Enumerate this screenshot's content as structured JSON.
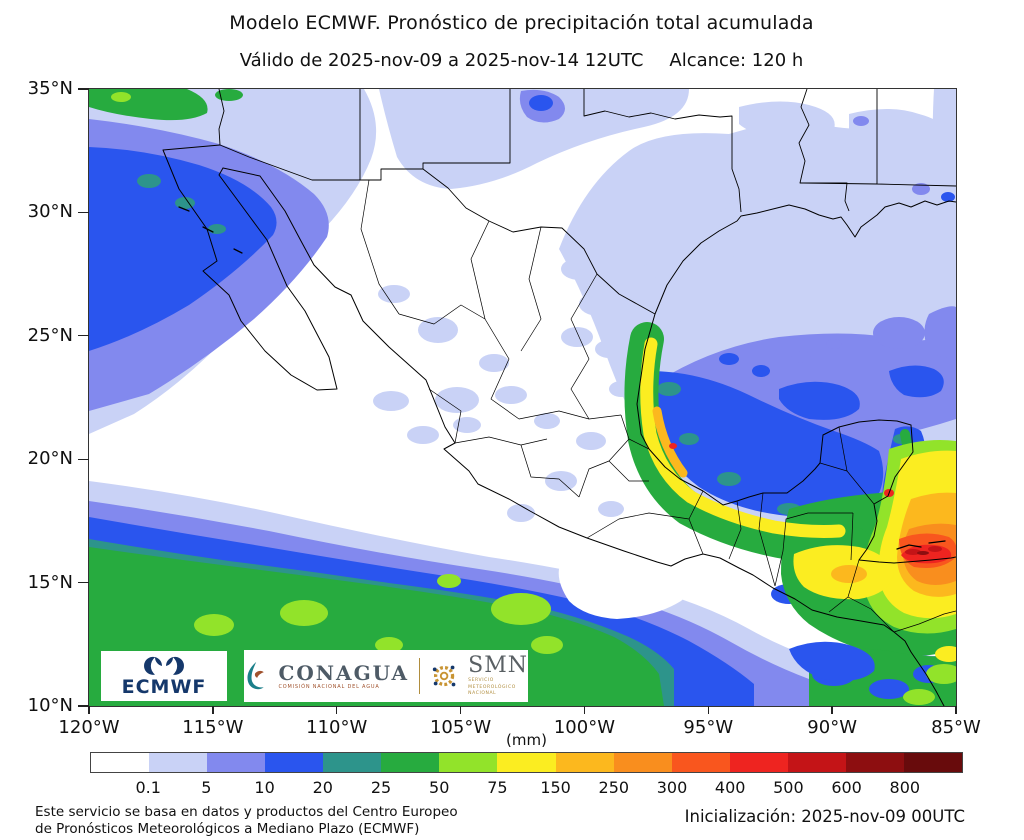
{
  "header": {
    "title": "Modelo ECMWF. Pronóstico de precipitación total acumulada",
    "subtitle_valid": "Válido de 2025-nov-09 a 2025-nov-14 12UTC",
    "subtitle_range": "Alcance: 120 h"
  },
  "map": {
    "y_axis": {
      "ticks": [
        "35°N",
        "30°N",
        "25°N",
        "20°N",
        "15°N",
        "10°N"
      ]
    },
    "x_axis": {
      "ticks": [
        "120°W",
        "115°W",
        "110°W",
        "105°W",
        "100°W",
        "95°W",
        "90°W",
        "85°W"
      ]
    },
    "logos": {
      "ecmwf": {
        "label": "ECMWF"
      },
      "conagua": {
        "label": "CONAGUA",
        "sublabel": "COMISIÓN NACIONAL DEL AGUA"
      },
      "smn": {
        "label": "SMN",
        "sublabel_1": "SERVICIO",
        "sublabel_2": "METEOROLÓGICO",
        "sublabel_3": "NACIONAL"
      }
    }
  },
  "colorbar": {
    "units": "(mm)",
    "tick_labels": [
      "0.1",
      "5",
      "10",
      "20",
      "25",
      "50",
      "75",
      "150",
      "250",
      "300",
      "400",
      "500",
      "600",
      "800"
    ],
    "colors": [
      "#ffffff",
      "#c9d2f6",
      "#8289ee",
      "#2a55ee",
      "#2d948b",
      "#27ab3f",
      "#92e32a",
      "#fbed21",
      "#fcb81e",
      "#f98e1e",
      "#f9561e",
      "#ee2420",
      "#c41417",
      "#8d0e10",
      "#680b0c"
    ]
  },
  "footer": {
    "disclaimer_line1": "Este servicio se basa en datos y productos del Centro Europeo",
    "disclaimer_line2": "de Pronósticos Meteorológicos a Mediano Plazo (ECMWF)",
    "initialization": "Inicialización: 2025-nov-09 00UTC"
  },
  "chart_data": {
    "type": "heatmap",
    "title": "Modelo ECMWF. Pronóstico de precipitación total acumulada",
    "units": "mm",
    "extent": {
      "lon_west": -120,
      "lon_east": -85,
      "lat_south": 10,
      "lat_north": 35
    },
    "levels_mm": [
      0.1,
      5,
      10,
      20,
      25,
      50,
      75,
      150,
      250,
      300,
      400,
      500,
      600,
      800
    ],
    "legend_position": "bottom",
    "notable_features": [
      "Maximum >400-600 mm over Belize / NE Guatemala / Caribbean coast near 16-17N 87-86W",
      "75-300 mm band along Bay of Campeche and Veracruz coast",
      "25-75 mm ITCZ band over Pacific south of Mexico (10-15N)",
      "10-50 mm band off California / NW Baja (top-left)",
      "0.1-10 mm over most of Gulf of Mexico and scattered over interior Mexico"
    ]
  }
}
